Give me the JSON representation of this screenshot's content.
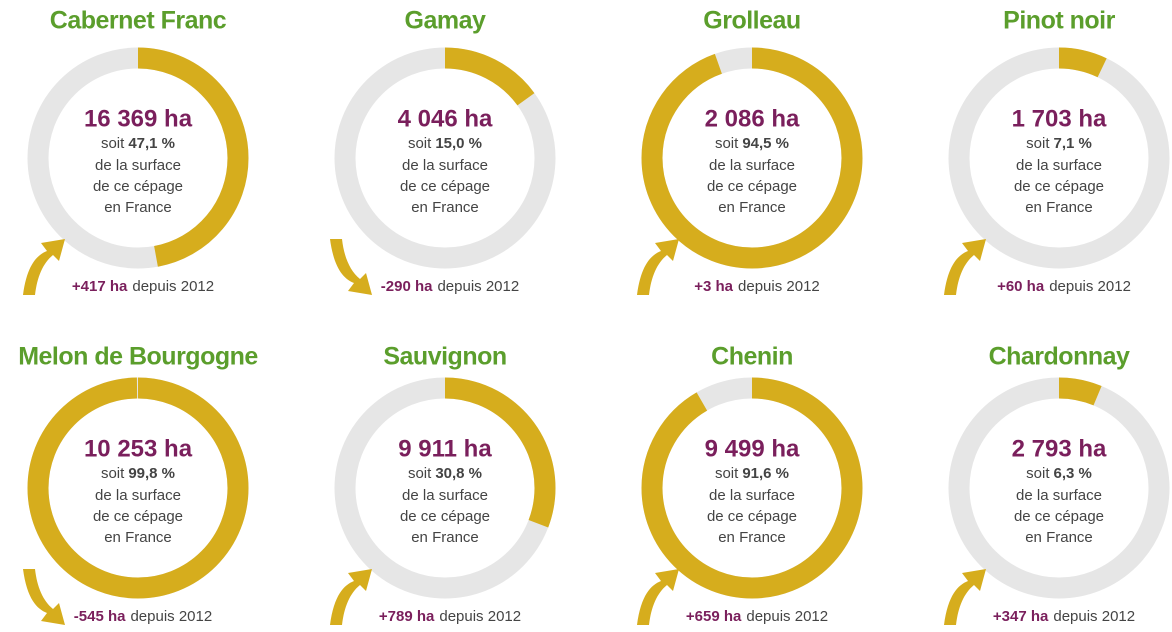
{
  "chart_data": [
    {
      "type": "donut",
      "title": "Cabernet Franc",
      "area": 16369,
      "area_label": "16 369 ha",
      "prefix": "soit",
      "values": [
        47.1
      ],
      "value_labels": [
        "47,1 %"
      ],
      "caption": [
        "de la surface",
        "de ce cépage",
        "en France"
      ],
      "change": 417,
      "change_label": "+417 ha",
      "change_suffix": "depuis 2012",
      "color": "#d6ad1d",
      "track_color": "#e6e6e6"
    },
    {
      "type": "donut",
      "title": "Gamay",
      "area": 4046,
      "area_label": "4 046 ha",
      "prefix": "soit",
      "values": [
        15.0
      ],
      "value_labels": [
        "15,0 %"
      ],
      "caption": [
        "de la surface",
        "de ce cépage",
        "en France"
      ],
      "change": -290,
      "change_label": "-290 ha",
      "change_suffix": "depuis 2012",
      "color": "#d6ad1d",
      "track_color": "#e6e6e6"
    },
    {
      "type": "donut",
      "title": "Grolleau",
      "area": 2086,
      "area_label": "2 086 ha",
      "prefix": "soit",
      "values": [
        94.5
      ],
      "value_labels": [
        "94,5 %"
      ],
      "caption": [
        "de la surface",
        "de ce cépage",
        "en France"
      ],
      "change": 3,
      "change_label": "+3 ha",
      "change_suffix": "depuis 2012",
      "color": "#d6ad1d",
      "track_color": "#e6e6e6"
    },
    {
      "type": "donut",
      "title": "Pinot noir",
      "area": 1703,
      "area_label": "1 703 ha",
      "prefix": "soit",
      "values": [
        7.1
      ],
      "value_labels": [
        "7,1 %"
      ],
      "caption": [
        "de la surface",
        "de ce cépage",
        "en France"
      ],
      "change": 60,
      "change_label": "+60 ha",
      "change_suffix": "depuis 2012",
      "color": "#d6ad1d",
      "track_color": "#e6e6e6"
    },
    {
      "type": "donut",
      "title": "Melon de Bourgogne",
      "area": 10253,
      "area_label": "10 253 ha",
      "prefix": "soit",
      "values": [
        99.8
      ],
      "value_labels": [
        "99,8 %"
      ],
      "caption": [
        "de la surface",
        "de ce cépage",
        "en France"
      ],
      "change": -545,
      "change_label": "-545 ha",
      "change_suffix": "depuis 2012",
      "color": "#d6ad1d",
      "track_color": "#e6e6e6"
    },
    {
      "type": "donut",
      "title": "Sauvignon",
      "area": 9911,
      "area_label": "9 911 ha",
      "prefix": "soit",
      "values": [
        30.8
      ],
      "value_labels": [
        "30,8 %"
      ],
      "caption": [
        "de la surface",
        "de ce cépage",
        "en France"
      ],
      "change": 789,
      "change_label": "+789 ha",
      "change_suffix": "depuis 2012",
      "color": "#d6ad1d",
      "track_color": "#e6e6e6"
    },
    {
      "type": "donut",
      "title": "Chenin",
      "area": 9499,
      "area_label": "9 499 ha",
      "prefix": "soit",
      "values": [
        91.6
      ],
      "value_labels": [
        "91,6 %"
      ],
      "caption": [
        "de la surface",
        "de ce cépage",
        "en France"
      ],
      "change": 659,
      "change_label": "+659 ha",
      "change_suffix": "depuis 2012",
      "color": "#d6ad1d",
      "track_color": "#e6e6e6"
    },
    {
      "type": "donut",
      "title": "Chardonnay",
      "area": 2793,
      "area_label": "2 793 ha",
      "prefix": "soit",
      "values": [
        6.3
      ],
      "value_labels": [
        "6,3 %"
      ],
      "caption": [
        "de la surface",
        "de ce cépage",
        "en France"
      ],
      "change": 347,
      "change_label": "+347 ha",
      "change_suffix": "depuis 2012",
      "color": "#d6ad1d",
      "track_color": "#e6e6e6"
    }
  ]
}
